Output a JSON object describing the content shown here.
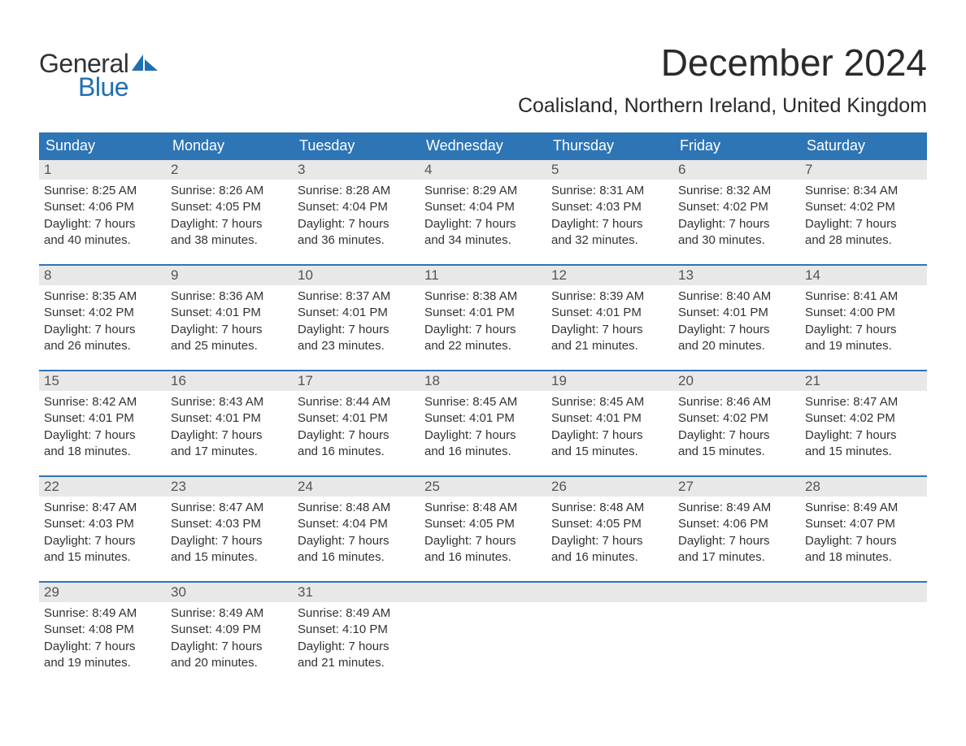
{
  "brand": {
    "text_general": "General",
    "text_blue": "Blue",
    "general_color": "#333333",
    "blue_color": "#1f6fb2",
    "sail_color": "#1f6fb2"
  },
  "header": {
    "month_title": "December 2024",
    "location": "Coalisland, Northern Ireland, United Kingdom"
  },
  "styling": {
    "page_bg": "#ffffff",
    "header_bar_bg": "#2e75b6",
    "header_bar_text": "#ffffff",
    "daynum_bg": "#e8e8e8",
    "daynum_text": "#555555",
    "body_text": "#333333",
    "week_divider": "#2e75b6",
    "font_family": "Arial",
    "month_title_fontsize": 46,
    "location_fontsize": 25,
    "weekday_fontsize": 18,
    "daynum_fontsize": 17,
    "body_fontsize": 15
  },
  "calendar": {
    "type": "table",
    "columns": [
      "Sunday",
      "Monday",
      "Tuesday",
      "Wednesday",
      "Thursday",
      "Friday",
      "Saturday"
    ],
    "weeks": [
      [
        {
          "n": "1",
          "sr": "Sunrise: 8:25 AM",
          "ss": "Sunset: 4:06 PM",
          "d1": "Daylight: 7 hours",
          "d2": "and 40 minutes."
        },
        {
          "n": "2",
          "sr": "Sunrise: 8:26 AM",
          "ss": "Sunset: 4:05 PM",
          "d1": "Daylight: 7 hours",
          "d2": "and 38 minutes."
        },
        {
          "n": "3",
          "sr": "Sunrise: 8:28 AM",
          "ss": "Sunset: 4:04 PM",
          "d1": "Daylight: 7 hours",
          "d2": "and 36 minutes."
        },
        {
          "n": "4",
          "sr": "Sunrise: 8:29 AM",
          "ss": "Sunset: 4:04 PM",
          "d1": "Daylight: 7 hours",
          "d2": "and 34 minutes."
        },
        {
          "n": "5",
          "sr": "Sunrise: 8:31 AM",
          "ss": "Sunset: 4:03 PM",
          "d1": "Daylight: 7 hours",
          "d2": "and 32 minutes."
        },
        {
          "n": "6",
          "sr": "Sunrise: 8:32 AM",
          "ss": "Sunset: 4:02 PM",
          "d1": "Daylight: 7 hours",
          "d2": "and 30 minutes."
        },
        {
          "n": "7",
          "sr": "Sunrise: 8:34 AM",
          "ss": "Sunset: 4:02 PM",
          "d1": "Daylight: 7 hours",
          "d2": "and 28 minutes."
        }
      ],
      [
        {
          "n": "8",
          "sr": "Sunrise: 8:35 AM",
          "ss": "Sunset: 4:02 PM",
          "d1": "Daylight: 7 hours",
          "d2": "and 26 minutes."
        },
        {
          "n": "9",
          "sr": "Sunrise: 8:36 AM",
          "ss": "Sunset: 4:01 PM",
          "d1": "Daylight: 7 hours",
          "d2": "and 25 minutes."
        },
        {
          "n": "10",
          "sr": "Sunrise: 8:37 AM",
          "ss": "Sunset: 4:01 PM",
          "d1": "Daylight: 7 hours",
          "d2": "and 23 minutes."
        },
        {
          "n": "11",
          "sr": "Sunrise: 8:38 AM",
          "ss": "Sunset: 4:01 PM",
          "d1": "Daylight: 7 hours",
          "d2": "and 22 minutes."
        },
        {
          "n": "12",
          "sr": "Sunrise: 8:39 AM",
          "ss": "Sunset: 4:01 PM",
          "d1": "Daylight: 7 hours",
          "d2": "and 21 minutes."
        },
        {
          "n": "13",
          "sr": "Sunrise: 8:40 AM",
          "ss": "Sunset: 4:01 PM",
          "d1": "Daylight: 7 hours",
          "d2": "and 20 minutes."
        },
        {
          "n": "14",
          "sr": "Sunrise: 8:41 AM",
          "ss": "Sunset: 4:00 PM",
          "d1": "Daylight: 7 hours",
          "d2": "and 19 minutes."
        }
      ],
      [
        {
          "n": "15",
          "sr": "Sunrise: 8:42 AM",
          "ss": "Sunset: 4:01 PM",
          "d1": "Daylight: 7 hours",
          "d2": "and 18 minutes."
        },
        {
          "n": "16",
          "sr": "Sunrise: 8:43 AM",
          "ss": "Sunset: 4:01 PM",
          "d1": "Daylight: 7 hours",
          "d2": "and 17 minutes."
        },
        {
          "n": "17",
          "sr": "Sunrise: 8:44 AM",
          "ss": "Sunset: 4:01 PM",
          "d1": "Daylight: 7 hours",
          "d2": "and 16 minutes."
        },
        {
          "n": "18",
          "sr": "Sunrise: 8:45 AM",
          "ss": "Sunset: 4:01 PM",
          "d1": "Daylight: 7 hours",
          "d2": "and 16 minutes."
        },
        {
          "n": "19",
          "sr": "Sunrise: 8:45 AM",
          "ss": "Sunset: 4:01 PM",
          "d1": "Daylight: 7 hours",
          "d2": "and 15 minutes."
        },
        {
          "n": "20",
          "sr": "Sunrise: 8:46 AM",
          "ss": "Sunset: 4:02 PM",
          "d1": "Daylight: 7 hours",
          "d2": "and 15 minutes."
        },
        {
          "n": "21",
          "sr": "Sunrise: 8:47 AM",
          "ss": "Sunset: 4:02 PM",
          "d1": "Daylight: 7 hours",
          "d2": "and 15 minutes."
        }
      ],
      [
        {
          "n": "22",
          "sr": "Sunrise: 8:47 AM",
          "ss": "Sunset: 4:03 PM",
          "d1": "Daylight: 7 hours",
          "d2": "and 15 minutes."
        },
        {
          "n": "23",
          "sr": "Sunrise: 8:47 AM",
          "ss": "Sunset: 4:03 PM",
          "d1": "Daylight: 7 hours",
          "d2": "and 15 minutes."
        },
        {
          "n": "24",
          "sr": "Sunrise: 8:48 AM",
          "ss": "Sunset: 4:04 PM",
          "d1": "Daylight: 7 hours",
          "d2": "and 16 minutes."
        },
        {
          "n": "25",
          "sr": "Sunrise: 8:48 AM",
          "ss": "Sunset: 4:05 PM",
          "d1": "Daylight: 7 hours",
          "d2": "and 16 minutes."
        },
        {
          "n": "26",
          "sr": "Sunrise: 8:48 AM",
          "ss": "Sunset: 4:05 PM",
          "d1": "Daylight: 7 hours",
          "d2": "and 16 minutes."
        },
        {
          "n": "27",
          "sr": "Sunrise: 8:49 AM",
          "ss": "Sunset: 4:06 PM",
          "d1": "Daylight: 7 hours",
          "d2": "and 17 minutes."
        },
        {
          "n": "28",
          "sr": "Sunrise: 8:49 AM",
          "ss": "Sunset: 4:07 PM",
          "d1": "Daylight: 7 hours",
          "d2": "and 18 minutes."
        }
      ],
      [
        {
          "n": "29",
          "sr": "Sunrise: 8:49 AM",
          "ss": "Sunset: 4:08 PM",
          "d1": "Daylight: 7 hours",
          "d2": "and 19 minutes."
        },
        {
          "n": "30",
          "sr": "Sunrise: 8:49 AM",
          "ss": "Sunset: 4:09 PM",
          "d1": "Daylight: 7 hours",
          "d2": "and 20 minutes."
        },
        {
          "n": "31",
          "sr": "Sunrise: 8:49 AM",
          "ss": "Sunset: 4:10 PM",
          "d1": "Daylight: 7 hours",
          "d2": "and 21 minutes."
        },
        {
          "n": "",
          "sr": "",
          "ss": "",
          "d1": "",
          "d2": ""
        },
        {
          "n": "",
          "sr": "",
          "ss": "",
          "d1": "",
          "d2": ""
        },
        {
          "n": "",
          "sr": "",
          "ss": "",
          "d1": "",
          "d2": ""
        },
        {
          "n": "",
          "sr": "",
          "ss": "",
          "d1": "",
          "d2": ""
        }
      ]
    ]
  }
}
